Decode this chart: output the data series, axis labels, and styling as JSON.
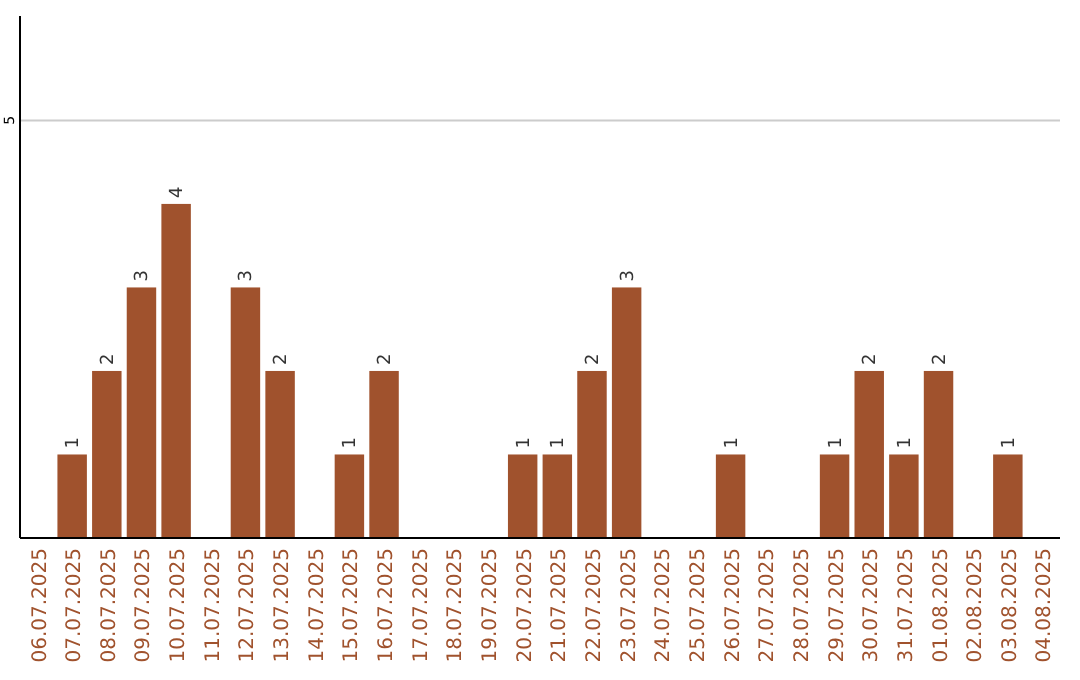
{
  "chart_data": {
    "type": "bar",
    "categories": [
      "06.07.2025",
      "07.07.2025",
      "08.07.2025",
      "09.07.2025",
      "10.07.2025",
      "11.07.2025",
      "12.07.2025",
      "13.07.2025",
      "14.07.2025",
      "15.07.2025",
      "16.07.2025",
      "17.07.2025",
      "18.07.2025",
      "19.07.2025",
      "20.07.2025",
      "21.07.2025",
      "22.07.2025",
      "23.07.2025",
      "24.07.2025",
      "25.07.2025",
      "26.07.2025",
      "27.07.2025",
      "28.07.2025",
      "29.07.2025",
      "30.07.2025",
      "31.07.2025",
      "01.08.2025",
      "02.08.2025",
      "03.08.2025",
      "04.08.2025"
    ],
    "values": [
      0,
      1,
      2,
      3,
      4,
      0,
      3,
      2,
      0,
      1,
      2,
      0,
      0,
      0,
      1,
      1,
      2,
      3,
      0,
      0,
      1,
      0,
      0,
      1,
      2,
      1,
      2,
      0,
      1,
      0
    ],
    "value_labels": [
      null,
      "1",
      "2",
      "3",
      "4",
      null,
      "3",
      "2",
      null,
      "1",
      "2",
      null,
      null,
      null,
      "1",
      "1",
      "2",
      "3",
      null,
      null,
      "1",
      null,
      null,
      "1",
      "2",
      "1",
      "2",
      null,
      "1",
      null
    ],
    "color": "#a0522d",
    "ylim": [
      0,
      6.25
    ],
    "yticks": [
      5
    ],
    "grid": "y"
  }
}
